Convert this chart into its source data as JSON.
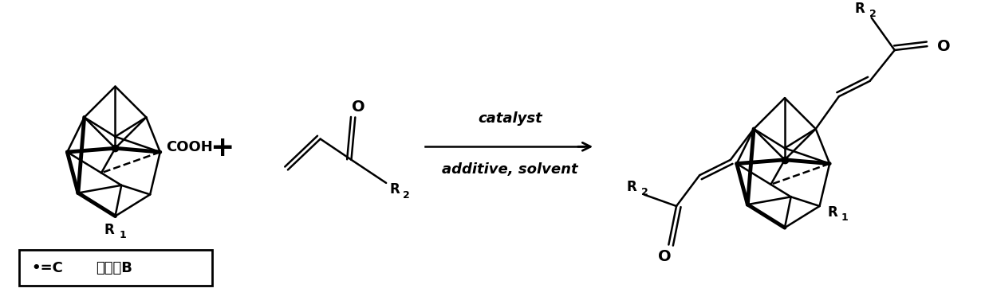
{
  "bg_color": "#ffffff",
  "line_color": "#000000",
  "lw": 1.8,
  "blw": 3.5,
  "fig_width": 12.4,
  "fig_height": 3.72,
  "dpi": 100,
  "catalyst_text": "catalyst",
  "additive_text": "additive, solvent",
  "reaction_fontsize": 13,
  "legend_text": "•=C  其他＝B",
  "legend_fontsize": 12
}
